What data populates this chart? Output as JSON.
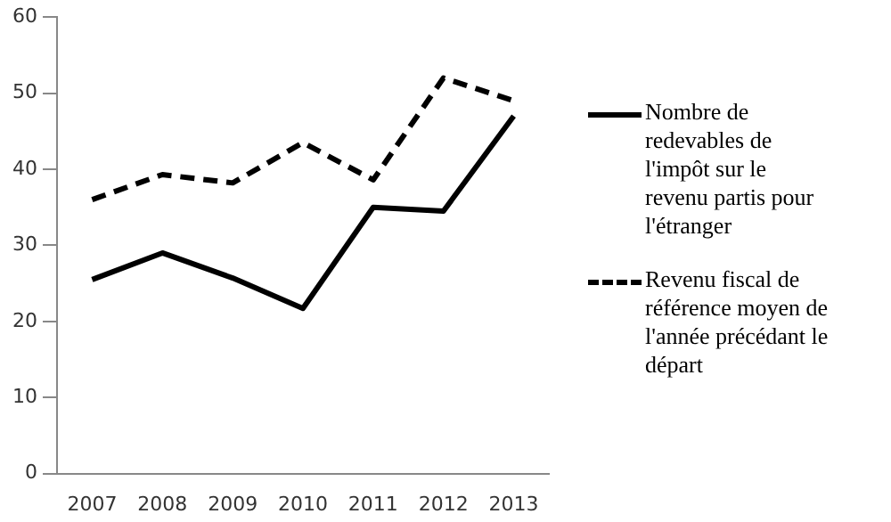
{
  "chart_data": {
    "type": "line",
    "categories": [
      "2007",
      "2008",
      "2009",
      "2010",
      "2011",
      "2012",
      "2013"
    ],
    "series": [
      {
        "name": "Nombre de redevables de l'impôt sur le revenu partis pour l'étranger",
        "color": "#000000",
        "line_style": "solid",
        "values": [
          25.5,
          29,
          25.7,
          21.7,
          35,
          34.5,
          47
        ]
      },
      {
        "name": "Revenu fiscal de référence moyen de l'année précédant le départ",
        "color": "#000000",
        "line_style": "dashed",
        "values": [
          36,
          39.3,
          38.2,
          43.5,
          38.6,
          52,
          49
        ]
      }
    ],
    "ylim": [
      0,
      60
    ],
    "yticks": [
      0,
      10,
      20,
      30,
      40,
      50,
      60
    ],
    "grid": false,
    "legend": "right",
    "marker": "none"
  }
}
